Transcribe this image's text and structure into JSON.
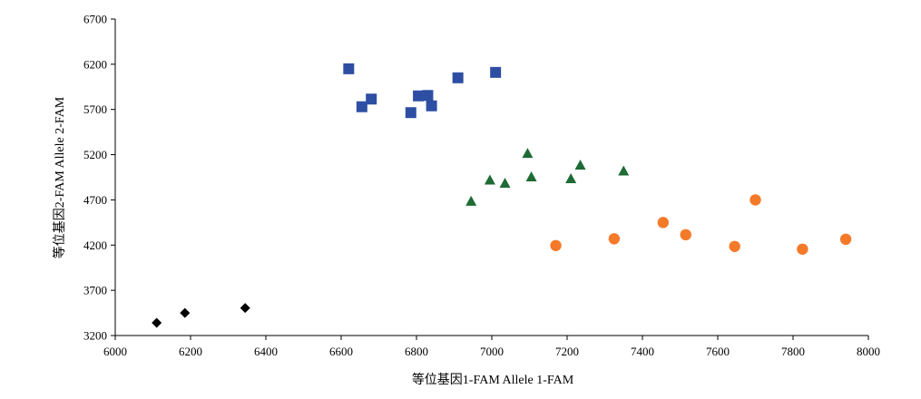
{
  "chart_data": {
    "type": "scatter",
    "xlabel": "等位基因1-FAM Allele 1-FAM",
    "ylabel": "等位基因2-FAM Allele 2-FAM",
    "xlim": [
      6000,
      8000
    ],
    "ylim": [
      3200,
      6700
    ],
    "xticks": [
      "6000",
      "6200",
      "6400",
      "6600",
      "6800",
      "7000",
      "7200",
      "7400",
      "7600",
      "7800",
      "8000"
    ],
    "yticks": [
      "3200",
      "3700",
      "4200",
      "4700",
      "5200",
      "5700",
      "6200",
      "6700"
    ],
    "grid": false,
    "legend": "none",
    "series": [
      {
        "marker": "square",
        "color": "#2e4ea3",
        "points": [
          [
            6620,
            6150
          ],
          [
            6655,
            5730
          ],
          [
            6680,
            5815
          ],
          [
            6785,
            5665
          ],
          [
            6805,
            5850
          ],
          [
            6830,
            5855
          ],
          [
            6840,
            5740
          ],
          [
            6910,
            6050
          ],
          [
            7010,
            6110
          ]
        ]
      },
      {
        "marker": "triangle",
        "color": "#1e6b35",
        "points": [
          [
            6945,
            4685
          ],
          [
            6995,
            4920
          ],
          [
            7035,
            4885
          ],
          [
            7095,
            5215
          ],
          [
            7105,
            4955
          ],
          [
            7210,
            4935
          ],
          [
            7235,
            5085
          ],
          [
            7350,
            5020
          ]
        ]
      },
      {
        "marker": "circle",
        "color": "#f47a2a",
        "points": [
          [
            7170,
            4195
          ],
          [
            7325,
            4270
          ],
          [
            7455,
            4450
          ],
          [
            7515,
            4315
          ],
          [
            7645,
            4185
          ],
          [
            7700,
            4700
          ],
          [
            7825,
            4155
          ],
          [
            7940,
            4265
          ]
        ]
      },
      {
        "marker": "diamond",
        "color": "#000000",
        "points": [
          [
            6110,
            3340
          ],
          [
            6185,
            3450
          ],
          [
            6345,
            3505
          ]
        ]
      }
    ]
  }
}
